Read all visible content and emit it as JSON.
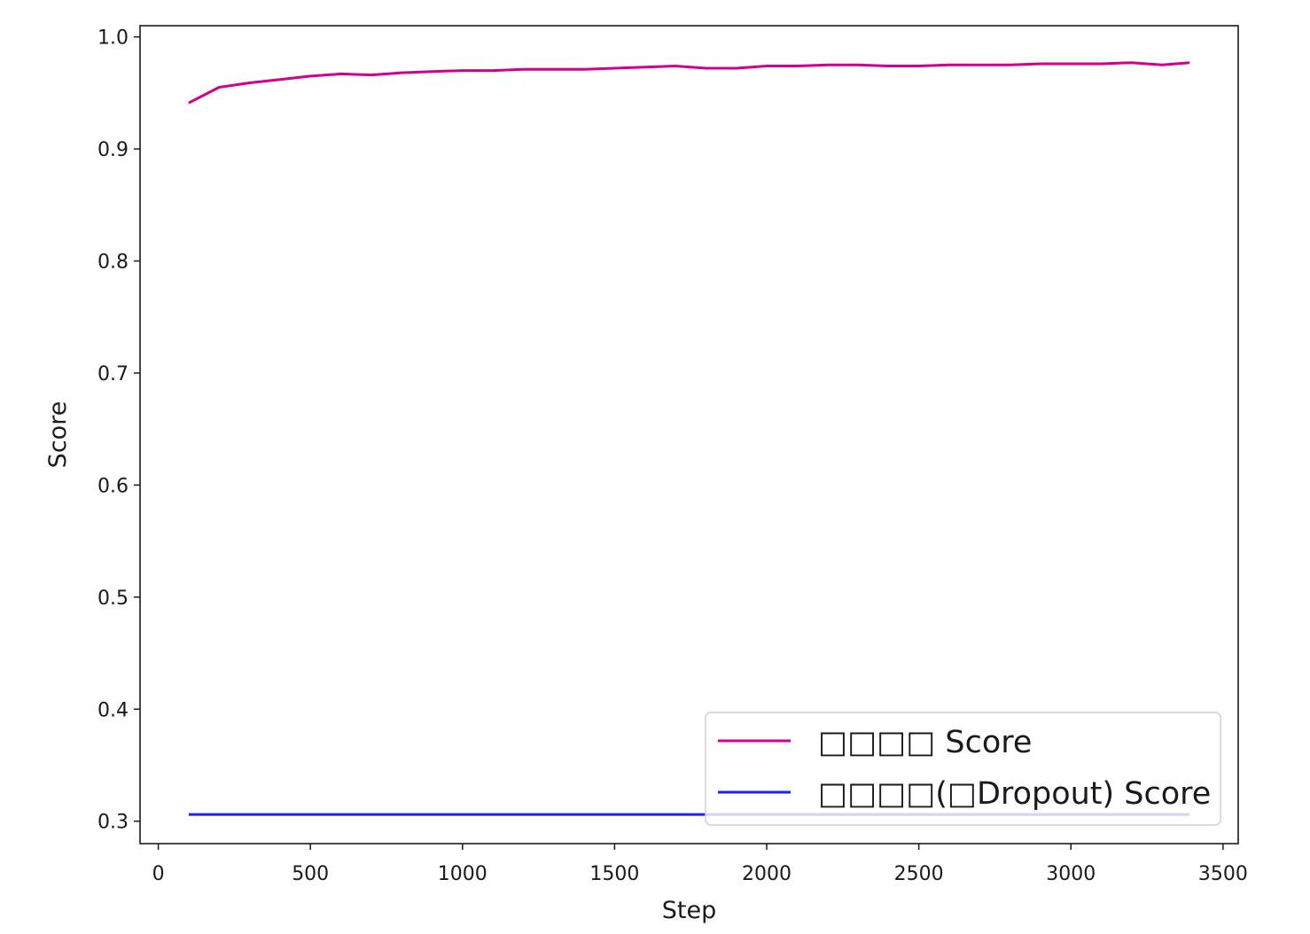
{
  "chart_data": {
    "type": "line",
    "title": "",
    "xlabel": "Step",
    "ylabel": "Score",
    "xlim": [
      -60,
      3550
    ],
    "ylim": [
      0.28,
      1.01
    ],
    "xticks": [
      0,
      500,
      1000,
      1500,
      2000,
      2500,
      3000,
      3500
    ],
    "xtick_labels": [
      "0",
      "500",
      "1000",
      "1500",
      "2000",
      "2500",
      "3000",
      "3500"
    ],
    "yticks": [
      0.3,
      0.4,
      0.5,
      0.6,
      0.7,
      0.8,
      0.9,
      1.0
    ],
    "ytick_labels": [
      "0.3",
      "0.4",
      "0.5",
      "0.6",
      "0.7",
      "0.8",
      "0.9",
      "1.0"
    ],
    "grid": false,
    "legend_position": "lower-right",
    "series": [
      {
        "name": "□□□□ Score",
        "color": "#d1008f",
        "x": [
          100,
          200,
          300,
          400,
          500,
          600,
          700,
          800,
          900,
          1000,
          1100,
          1200,
          1300,
          1400,
          1500,
          1600,
          1700,
          1800,
          1900,
          2000,
          2100,
          2200,
          2300,
          2400,
          2500,
          2600,
          2700,
          2800,
          2900,
          3000,
          3100,
          3200,
          3300,
          3390
        ],
        "y": [
          0.941,
          0.955,
          0.959,
          0.962,
          0.965,
          0.967,
          0.966,
          0.968,
          0.969,
          0.97,
          0.97,
          0.971,
          0.971,
          0.971,
          0.972,
          0.973,
          0.974,
          0.972,
          0.972,
          0.974,
          0.974,
          0.975,
          0.975,
          0.974,
          0.974,
          0.975,
          0.975,
          0.975,
          0.976,
          0.976,
          0.976,
          0.977,
          0.975,
          0.977
        ]
      },
      {
        "name": "□□□□(□Dropout) Score",
        "color": "#1f1fff",
        "x": [
          100,
          3390
        ],
        "y": [
          0.306,
          0.306
        ]
      }
    ]
  }
}
